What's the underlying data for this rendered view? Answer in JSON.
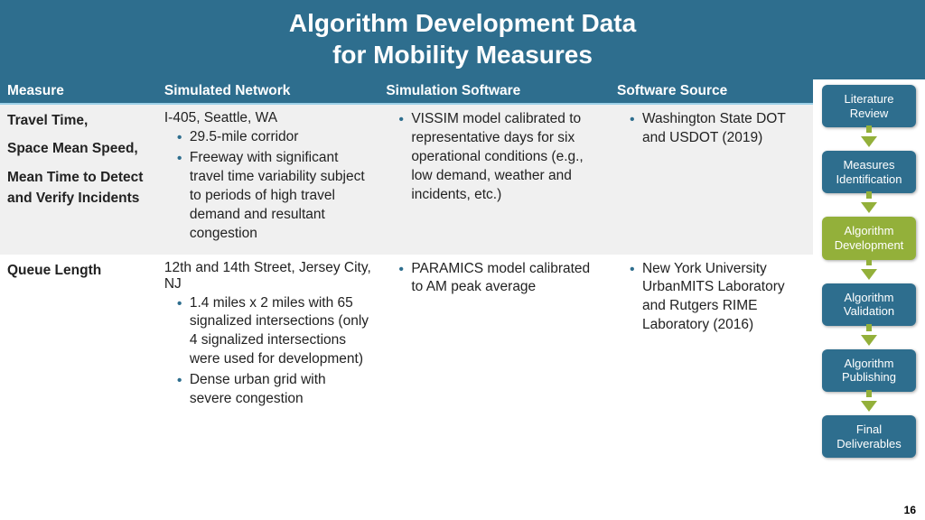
{
  "title_line1": "Algorithm Development Data",
  "title_line2": "for Mobility Measures",
  "page_number": "16",
  "colors": {
    "header_bg": "#2e6e8e",
    "accent": "#93b03a",
    "row_alt": "#f0f0f0",
    "bullet": "#2e6e8e"
  },
  "table": {
    "columns": [
      "Measure",
      "Simulated Network",
      "Simulation Software",
      "Software Source"
    ],
    "rows": [
      {
        "measure_lines": [
          "Travel Time,",
          "Space Mean Speed,",
          "Mean Time to Detect and Verify Incidents"
        ],
        "network_title": "I-405, Seattle, WA",
        "network_bullets": [
          "29.5-mile corridor",
          "Freeway with significant travel time variability subject to periods of high travel demand and resultant congestion"
        ],
        "software_bullets": [
          "VISSIM model calibrated to representative days for six operational conditions (e.g., low demand, weather and incidents, etc.)"
        ],
        "source_bullets": [
          "Washington State DOT and USDOT (2019)"
        ]
      },
      {
        "measure_lines": [
          "Queue Length"
        ],
        "network_title": "12th and 14th Street, Jersey City, NJ",
        "network_bullets": [
          "1.4 miles x 2 miles with 65 signalized intersections (only 4 signalized intersections were used for development)",
          "Dense urban grid with severe congestion"
        ],
        "software_bullets": [
          "PARAMICS model calibrated to AM peak average"
        ],
        "source_bullets": [
          "New York University UrbanMITS Laboratory and Rutgers RIME Laboratory (2016)"
        ]
      }
    ]
  },
  "flow": {
    "steps": [
      {
        "label": "Literature Review",
        "active": false
      },
      {
        "label": "Measures Identification",
        "active": false
      },
      {
        "label": "Algorithm Development",
        "active": true
      },
      {
        "label": "Algorithm Validation",
        "active": false
      },
      {
        "label": "Algorithm Publishing",
        "active": false
      },
      {
        "label": "Final Deliverables",
        "active": false
      }
    ]
  }
}
